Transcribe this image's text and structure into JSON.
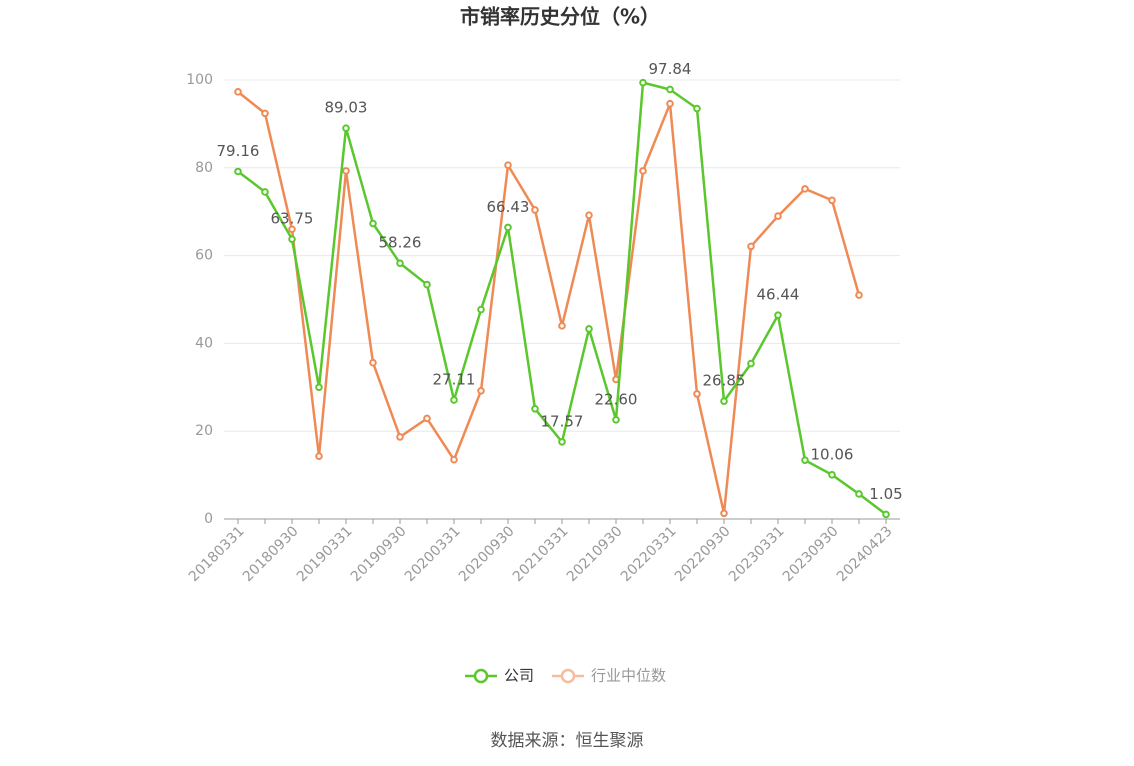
{
  "chart_data": {
    "type": "line",
    "title": "市销率历史分位（%）",
    "categories": [
      "20180331",
      null,
      "20180930",
      null,
      "20190331",
      null,
      "20190930",
      null,
      "20200331",
      null,
      "20200930",
      null,
      "20210331",
      null,
      "20210930",
      null,
      "20220331",
      null,
      "20220930",
      null,
      "20230331",
      null,
      "20230930",
      null,
      "20240423"
    ],
    "series": [
      {
        "name": "公司",
        "color": "#5ac72d",
        "values": [
          79.16,
          74.5,
          63.75,
          30.0,
          89.03,
          67.3,
          58.26,
          53.4,
          27.11,
          47.7,
          66.43,
          25.1,
          17.57,
          43.3,
          22.6,
          99.4,
          97.84,
          93.5,
          26.85,
          35.4,
          46.44,
          13.4,
          10.06,
          5.7,
          1.05
        ],
        "value_labels": [
          "79.16",
          null,
          "63.75",
          null,
          "89.03",
          null,
          "58.26",
          null,
          "27.11",
          null,
          "66.43",
          null,
          "17.57",
          null,
          "22.60",
          null,
          "97.84",
          null,
          "26.85",
          null,
          "46.44",
          null,
          "10.06",
          null,
          "1.05"
        ]
      },
      {
        "name": "行业中位数",
        "color": "#f08a55",
        "values": [
          97.3,
          92.4,
          66.0,
          14.3,
          79.3,
          35.6,
          18.7,
          22.9,
          13.5,
          29.2,
          80.6,
          70.4,
          44.0,
          69.2,
          31.8,
          79.3,
          94.6,
          28.5,
          1.3,
          62.1,
          69.0,
          75.2,
          72.6,
          51.0,
          null
        ]
      }
    ],
    "ylim": [
      0,
      100
    ],
    "yticks": [
      0,
      20,
      40,
      60,
      80,
      100
    ],
    "grid": true,
    "source": "数据来源：恒生聚源"
  }
}
